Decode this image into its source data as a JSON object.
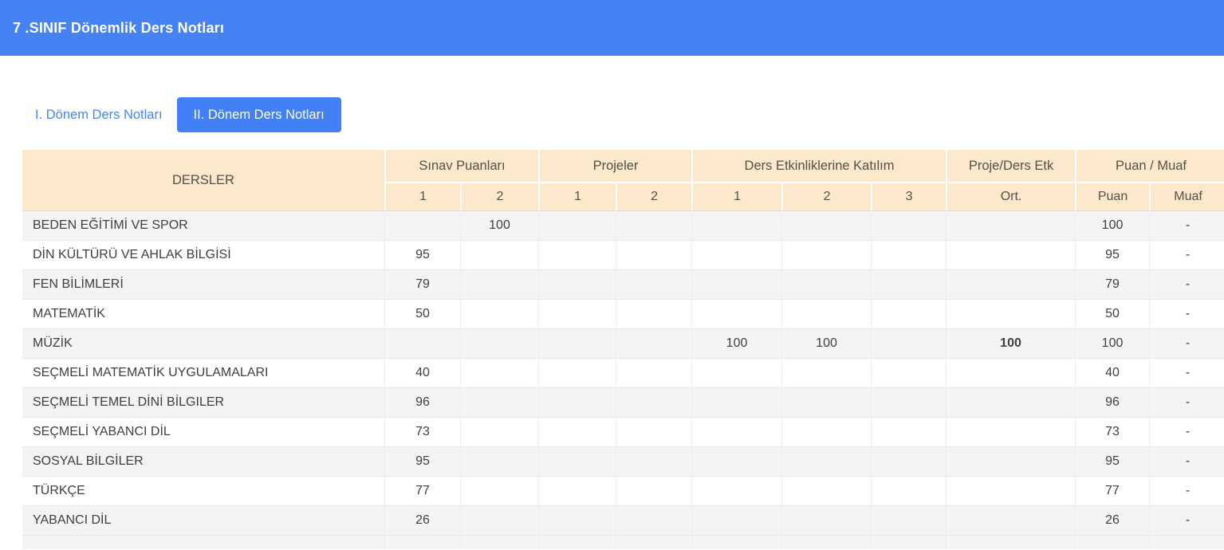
{
  "header": {
    "title": "7 .SINIF Dönemlik Ders Notları"
  },
  "tabs": [
    {
      "label": "I. Dönem Ders Notları",
      "active": false
    },
    {
      "label": "II. Dönem Ders Notları",
      "active": true
    }
  ],
  "colors": {
    "topbar_blue": "#4583f5",
    "active_tab_blue": "#4180f6",
    "tab_link_blue": "#4a86ef",
    "table_header_bg": "#fce8ca",
    "row_stripe": "#f4f4f5"
  },
  "table": {
    "group_headers": [
      {
        "label": "DERSLER",
        "colspan": 1
      },
      {
        "label": "Sınav Puanları",
        "colspan": 2
      },
      {
        "label": "Projeler",
        "colspan": 2
      },
      {
        "label": "Ders Etkinliklerine Katılım",
        "colspan": 3
      },
      {
        "label": "Proje/Ders Etk",
        "colspan": 1
      },
      {
        "label": "Puan / Muaf",
        "colspan": 2
      }
    ],
    "sub_headers": [
      "1",
      "2",
      "1",
      "2",
      "1",
      "2",
      "3",
      "Ort.",
      "Puan",
      "Muaf"
    ],
    "rows": [
      {
        "name": "BEDEN EĞİTİMİ VE SPOR",
        "cells": [
          "",
          "100",
          "",
          "",
          "",
          "",
          "",
          "",
          "100",
          "-"
        ]
      },
      {
        "name": "DİN KÜLTÜRÜ VE AHLAK BİLGİSİ",
        "cells": [
          "95",
          "",
          "",
          "",
          "",
          "",
          "",
          "",
          "95",
          "-"
        ]
      },
      {
        "name": "FEN BİLİMLERİ",
        "cells": [
          "79",
          "",
          "",
          "",
          "",
          "",
          "",
          "",
          "79",
          "-"
        ]
      },
      {
        "name": "MATEMATİK",
        "cells": [
          "50",
          "",
          "",
          "",
          "",
          "",
          "",
          "",
          "50",
          "-"
        ]
      },
      {
        "name": "MÜZİK",
        "cells": [
          "",
          "",
          "",
          "",
          "100",
          "100",
          "",
          "100",
          "100",
          "-"
        ]
      },
      {
        "name": "SEÇMELİ MATEMATİK UYGULAMALARI",
        "cells": [
          "40",
          "",
          "",
          "",
          "",
          "",
          "",
          "",
          "40",
          "-"
        ]
      },
      {
        "name": "SEÇMELİ TEMEL DİNİ BİLGILER",
        "cells": [
          "96",
          "",
          "",
          "",
          "",
          "",
          "",
          "",
          "96",
          "-"
        ]
      },
      {
        "name": "SEÇMELİ YABANCI DİL",
        "cells": [
          "73",
          "",
          "",
          "",
          "",
          "",
          "",
          "",
          "73",
          "-"
        ]
      },
      {
        "name": "SOSYAL BİLGİLER",
        "cells": [
          "95",
          "",
          "",
          "",
          "",
          "",
          "",
          "",
          "95",
          "-"
        ]
      },
      {
        "name": "TÜRKÇE",
        "cells": [
          "77",
          "",
          "",
          "",
          "",
          "",
          "",
          "",
          "77",
          "-"
        ]
      },
      {
        "name": "YABANCI DİL",
        "cells": [
          "26",
          "",
          "",
          "",
          "",
          "",
          "",
          "",
          "26",
          "-"
        ]
      },
      {
        "name": "",
        "cells": [
          "",
          "",
          "",
          "",
          "",
          "",
          "",
          "",
          "",
          ""
        ],
        "partial": true
      }
    ]
  }
}
